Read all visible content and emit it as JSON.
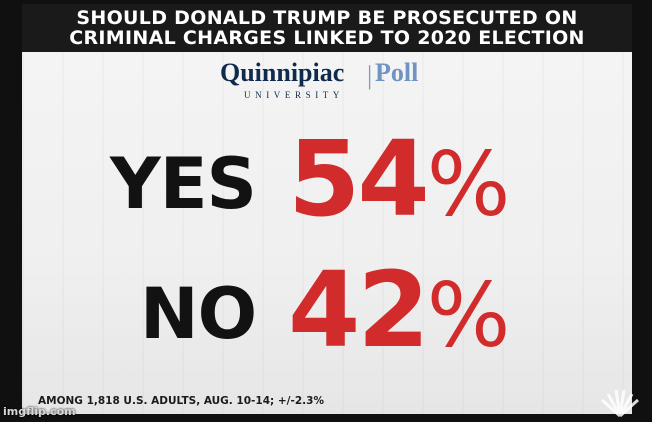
{
  "headline": {
    "line1": "SHOULD DONALD TRUMP BE PROSECUTED ON",
    "line2": "CRIMINAL CHARGES LINKED TO 2020 ELECTION"
  },
  "logo": {
    "name": "Quinnipiac",
    "separator": "|",
    "poll": "Poll",
    "university": "UNIVERSITY"
  },
  "results": [
    {
      "label": "YES",
      "value": "54",
      "unit": "%"
    },
    {
      "label": "NO",
      "value": "42",
      "unit": "%"
    }
  ],
  "footnote": "AMONG 1,818 U.S. ADULTS, AUG. 10-14; +/-2.3%",
  "watermark": "imgflip.com",
  "colors": {
    "headline_bg": "#1a1a1a",
    "card_bg": "#f2f2f2",
    "value_red": "#d12b2b",
    "label_black": "#121212",
    "logo_navy": "#0f2a4a",
    "logo_blue": "#6f93c2"
  },
  "icons": {
    "network_logo": "peacock-icon"
  }
}
